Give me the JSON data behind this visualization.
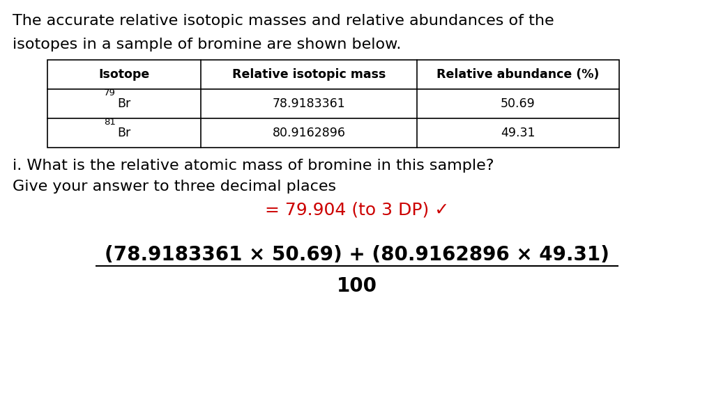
{
  "title_line1": "The accurate relative isotopic masses and relative abundances of the",
  "title_line2": "isotopes in a sample of bromine are shown below.",
  "table_headers": [
    "Isotope",
    "Relative isotopic mass",
    "Relative abundance (%)"
  ],
  "row1_mass": "78.9183361",
  "row1_abundance": "50.69",
  "row2_mass": "80.9162896",
  "row2_abundance": "49.31",
  "question_line1": "i. What is the relative atomic mass of bromine in this sample?",
  "question_line2": "Give your answer to three decimal places",
  "answer_text": "= 79.904 (to 3 DP) ✓",
  "formula_numerator": "(78.9183361 × 50.69) + (80.9162896 × 49.31)",
  "formula_denominator": "100",
  "answer_color": "#cc0000",
  "text_color": "#000000",
  "bg_color": "#ffffff",
  "title_fontsize": 16,
  "table_header_fontsize": 12.5,
  "table_cell_fontsize": 12.5,
  "question_fontsize": 16,
  "answer_fontsize": 18,
  "formula_fontsize": 20
}
